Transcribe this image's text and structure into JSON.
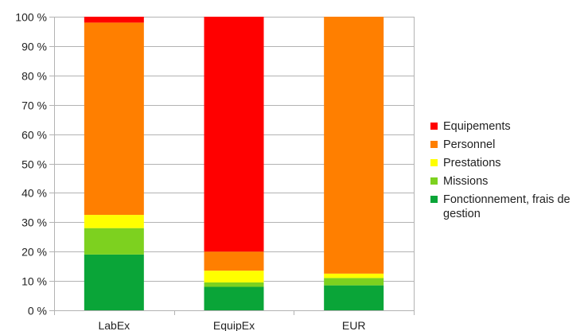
{
  "chart_data": {
    "type": "bar",
    "stacked": true,
    "categories": [
      "LabEx",
      "EquipEx",
      "EUR"
    ],
    "ylim": [
      0,
      100
    ],
    "yticks": [
      0,
      10,
      20,
      30,
      40,
      50,
      60,
      70,
      80,
      90,
      100
    ],
    "ytick_labels": [
      "0 %",
      "10 %",
      "20 %",
      "30 %",
      "40 %",
      "50 %",
      "60 %",
      "70 %",
      "80 %",
      "90 %",
      "100 %"
    ],
    "grid": true,
    "legend_position": "right",
    "series": [
      {
        "name": "Fonctionnement, frais de gestion",
        "color": "#0aa538",
        "values": [
          19.0,
          8.0,
          8.5
        ]
      },
      {
        "name": "Missions",
        "color": "#7dd11f",
        "values": [
          9.0,
          1.5,
          2.5
        ]
      },
      {
        "name": "Prestations",
        "color": "#ffff00",
        "values": [
          4.5,
          4.0,
          1.5
        ]
      },
      {
        "name": "Personnel",
        "color": "#ff7f00",
        "values": [
          65.5,
          6.5,
          87.5
        ]
      },
      {
        "name": "Equipements",
        "color": "#ff0000",
        "values": [
          2.0,
          80.0,
          0.0
        ]
      }
    ]
  }
}
